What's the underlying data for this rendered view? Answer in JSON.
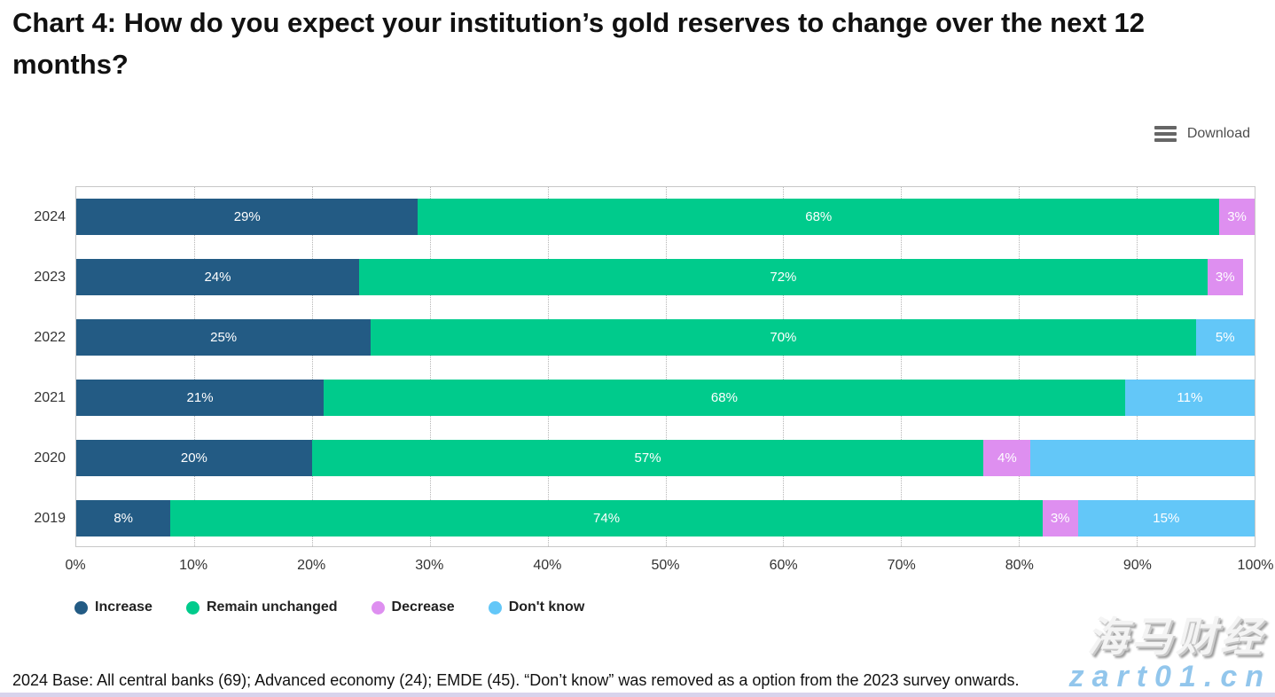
{
  "page": {
    "title": "Chart 4: How do you expect your institution’s gold reserves to change over the next 12 months?",
    "download_label": "Download",
    "footnote": "2024 Base: All central banks (69); Advanced economy (24); EMDE (45). “Don’t know” was removed as a option from the 2023 survey onwards.",
    "watermark_cn": "海马财经",
    "watermark_site": "zart01.cn"
  },
  "chart_data": {
    "type": "bar",
    "orientation": "horizontal",
    "stacked": true,
    "grid": "vertical-dotted",
    "legend_position": "bottom",
    "x_axis": {
      "min": 0,
      "max": 100,
      "ticks": [
        "0%",
        "10%",
        "20%",
        "30%",
        "40%",
        "50%",
        "60%",
        "70%",
        "80%",
        "90%",
        "100%"
      ]
    },
    "legend": [
      {
        "name": "Increase",
        "color": "#235b84"
      },
      {
        "name": "Remain unchanged",
        "color": "#00cb8c"
      },
      {
        "name": "Decrease",
        "color": "#de8ff0"
      },
      {
        "name": "Don't know",
        "color": "#63c7f8"
      }
    ],
    "rows": [
      {
        "category": "2024",
        "segments": [
          {
            "series": "Increase",
            "value": 29,
            "label": "29%"
          },
          {
            "series": "Remain unchanged",
            "value": 68,
            "label": "68%"
          },
          {
            "series": "Decrease",
            "value": 3,
            "label": "3%"
          }
        ]
      },
      {
        "category": "2023",
        "segments": [
          {
            "series": "Increase",
            "value": 24,
            "label": "24%"
          },
          {
            "series": "Remain unchanged",
            "value": 72,
            "label": "72%"
          },
          {
            "series": "Decrease",
            "value": 3,
            "label": "3%"
          }
        ]
      },
      {
        "category": "2022",
        "segments": [
          {
            "series": "Increase",
            "value": 25,
            "label": "25%"
          },
          {
            "series": "Remain unchanged",
            "value": 70,
            "label": "70%"
          },
          {
            "series": "Don't know",
            "value": 5,
            "label": "5%"
          }
        ]
      },
      {
        "category": "2021",
        "segments": [
          {
            "series": "Increase",
            "value": 21,
            "label": "21%"
          },
          {
            "series": "Remain unchanged",
            "value": 68,
            "label": "68%"
          },
          {
            "series": "Don't know",
            "value": 11,
            "label": "11%"
          }
        ]
      },
      {
        "category": "2020",
        "segments": [
          {
            "series": "Increase",
            "value": 20,
            "label": "20%"
          },
          {
            "series": "Remain unchanged",
            "value": 57,
            "label": "57%"
          },
          {
            "series": "Decrease",
            "value": 4,
            "label": "4%"
          },
          {
            "series": "Don't know",
            "value": 19,
            "label": ""
          }
        ]
      },
      {
        "category": "2019",
        "segments": [
          {
            "series": "Increase",
            "value": 8,
            "label": "8%"
          },
          {
            "series": "Remain unchanged",
            "value": 74,
            "label": "74%"
          },
          {
            "series": "Decrease",
            "value": 3,
            "label": "3%"
          },
          {
            "series": "Don't know",
            "value": 15,
            "label": "15%"
          }
        ]
      }
    ]
  }
}
